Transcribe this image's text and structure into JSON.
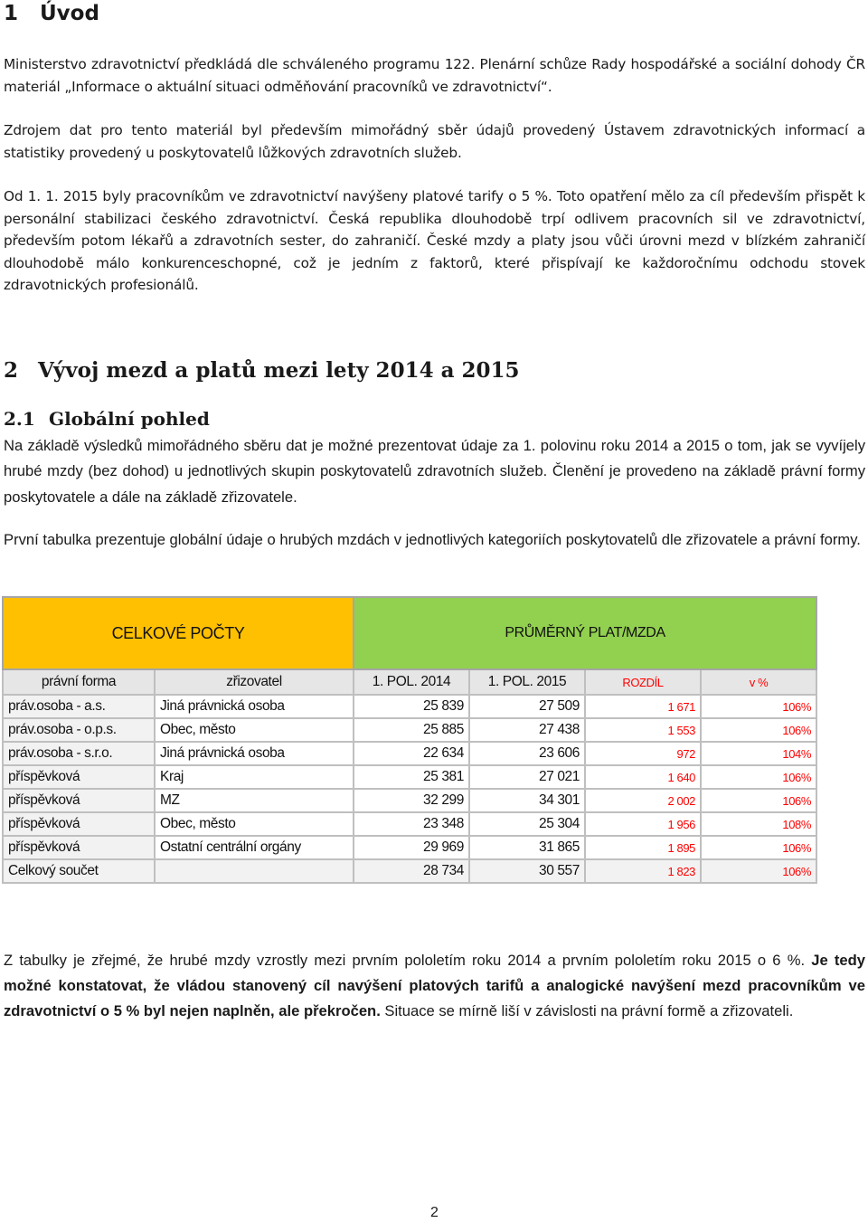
{
  "section1": {
    "number": "1",
    "title": "Úvod",
    "paragraphs": [
      "Ministerstvo zdravotnictví předkládá dle schváleného programu 122. Plenární schůze Rady hospodářské a sociální dohody ČR materiál „Informace o aktuální situaci odměňování pracovníků ve zdravotnictví“.",
      "Zdrojem dat pro tento materiál byl především mimořádný sběr údajů provedený Ústavem zdravotnických informací a statistiky provedený u poskytovatelů lůžkových zdravotních služeb.",
      "Od 1. 1. 2015 byly pracovníkům ve zdravotnictví navýšeny platové tarify o 5 %. Toto opatření mělo za cíl především přispět k personální stabilizaci českého zdravotnictví. Česká republika dlouhodobě trpí odlivem pracovních sil ve zdravotnictví, především potom lékařů a zdravotních sester, do zahraničí. České mzdy a platy jsou vůči úrovni mezd v blízkém zahraničí dlouhodobě málo konkurenceschopné, což je jedním z faktorů, které přispívají ke každoročnímu odchodu stovek zdravotnických profesionálů."
    ]
  },
  "section2": {
    "number": "2",
    "title": "Vývoj mezd a platů mezi lety 2014 a 2015"
  },
  "section21": {
    "number": "2.1",
    "title": "Globální pohled",
    "paragraphs": [
      "Na základě výsledků mimořádného sběru dat je možné prezentovat údaje za 1. polovinu roku 2014 a 2015 o tom, jak se vyvíjely hrubé mzdy (bez dohod) u jednotlivých skupin poskytovatelů zdravotních služeb. Členění je provedeno na základě právní formy poskytovatele a dále na základě zřizovatele.",
      "První tabulka prezentuje globální údaje o hrubých mzdách v jednotlivých kategoriích poskytovatelů dle zřizovatele a právní formy."
    ]
  },
  "table": {
    "band_left": "CELKOVÉ POČTY",
    "band_right": "PRŮMĚRNÝ PLAT/MZDA",
    "headers": [
      "právní forma",
      "zřizovatel",
      "1. POL. 2014",
      "1. POL. 2015",
      "ROZDÍL",
      "v %"
    ],
    "rows": [
      {
        "forma": "práv.osoba - a.s.",
        "zrizovatel": "Jiná právnická osoba",
        "y2014": "25 839",
        "y2015": "27 509",
        "rozdil": "1 671",
        "pct": "106%"
      },
      {
        "forma": "práv.osoba - o.p.s.",
        "zrizovatel": "Obec, město",
        "y2014": "25 885",
        "y2015": "27 438",
        "rozdil": "1 553",
        "pct": "106%"
      },
      {
        "forma": "práv.osoba - s.r.o.",
        "zrizovatel": "Jiná právnická osoba",
        "y2014": "22 634",
        "y2015": "23 606",
        "rozdil": "972",
        "pct": "104%"
      },
      {
        "forma": "příspěvková",
        "zrizovatel": "Kraj",
        "y2014": "25 381",
        "y2015": "27 021",
        "rozdil": "1 640",
        "pct": "106%"
      },
      {
        "forma": "příspěvková",
        "zrizovatel": "MZ",
        "y2014": "32 299",
        "y2015": "34 301",
        "rozdil": "2 002",
        "pct": "106%"
      },
      {
        "forma": "příspěvková",
        "zrizovatel": "Obec, město",
        "y2014": "23 348",
        "y2015": "25 304",
        "rozdil": "1 956",
        "pct": "108%"
      },
      {
        "forma": "příspěvková",
        "zrizovatel": "Ostatní centrální orgány",
        "y2014": "29 969",
        "y2015": "31 865",
        "rozdil": "1 895",
        "pct": "106%"
      }
    ],
    "total": {
      "label": "Celkový součet",
      "y2014": "28 734",
      "y2015": "30 557",
      "rozdil": "1 823",
      "pct": "106%"
    }
  },
  "conclusion": {
    "lead": "Z tabulky je zřejmé, že hrubé mzdy vzrostly mezi prvním pololetím roku 2014 a prvním pololetím roku 2015 o 6 %. ",
    "bold": "Je tedy možné konstatovat, že vládou stanovený cíl navýšení platových tarifů a analogické navýšení mezd pracovníkům ve zdravotnictví o 5 % byl nejen naplněn, ale překročen.",
    "tail": " Situace se mírně liší v závislosti na právní formě a zřizovateli."
  },
  "page_number": "2",
  "colors": {
    "band_left": "#fec000",
    "band_right": "#92d050",
    "difference_text": "#ff0000"
  }
}
